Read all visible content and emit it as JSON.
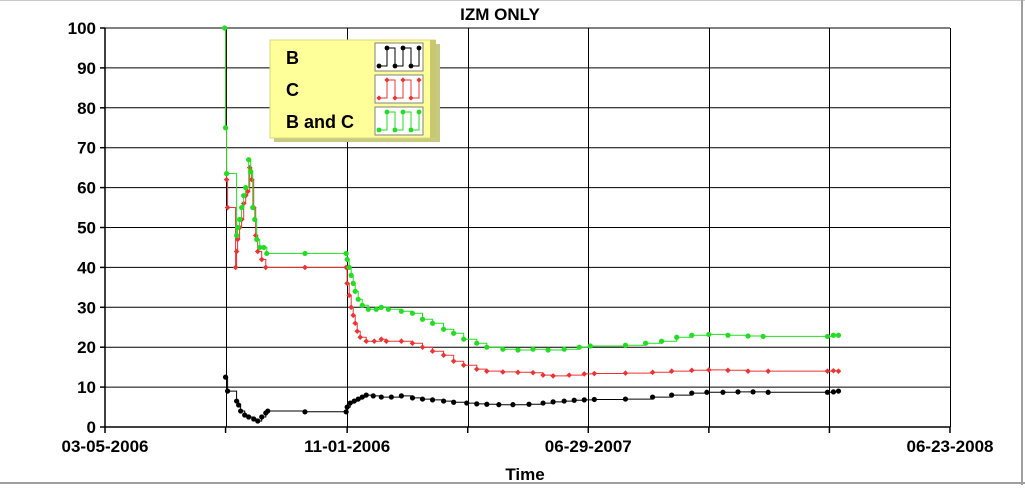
{
  "chart_data": {
    "type": "line",
    "title": "IZM ONLY",
    "xlabel": "Time",
    "ylabel": "",
    "ylim": [
      0,
      100
    ],
    "yticks": [
      0,
      10,
      20,
      30,
      40,
      50,
      60,
      70,
      80,
      90,
      100
    ],
    "xlim": [
      "2006-03-05",
      "2008-06-23"
    ],
    "xtick_dates": [
      "2006-03-05",
      "2006-07-03",
      "2006-11-01",
      "2007-03-01",
      "2007-06-29",
      "2007-10-27",
      "2008-02-24",
      "2008-06-23"
    ],
    "xtick_labels": [
      "03-05-2006",
      "",
      "11-01-2006",
      "",
      "06-29-2007",
      "",
      "",
      "06-23-2008"
    ],
    "grid": true,
    "legend_position": "top-left",
    "series": [
      {
        "name": "B",
        "color": "#000000",
        "points": [
          [
            "2006-07-03",
            12.5
          ],
          [
            "2006-07-05",
            9
          ],
          [
            "2006-07-14",
            6.5
          ],
          [
            "2006-07-16",
            5.5
          ],
          [
            "2006-07-18",
            4
          ],
          [
            "2006-07-22",
            3
          ],
          [
            "2006-07-26",
            2.5
          ],
          [
            "2006-07-31",
            2
          ],
          [
            "2006-08-04",
            1.5
          ],
          [
            "2006-08-08",
            2.5
          ],
          [
            "2006-08-12",
            3.5
          ],
          [
            "2006-08-14",
            4
          ],
          [
            "2006-09-20",
            3.8
          ],
          [
            "2006-10-31",
            3.8
          ],
          [
            "2006-11-01",
            5
          ],
          [
            "2006-11-04",
            6
          ],
          [
            "2006-11-08",
            6.5
          ],
          [
            "2006-11-12",
            7
          ],
          [
            "2006-11-16",
            7.5
          ],
          [
            "2006-11-20",
            8
          ],
          [
            "2006-11-27",
            7.8
          ],
          [
            "2006-12-05",
            7.5
          ],
          [
            "2006-12-15",
            7.5
          ],
          [
            "2006-12-25",
            7.8
          ],
          [
            "2007-01-05",
            7.3
          ],
          [
            "2007-01-15",
            7
          ],
          [
            "2007-01-25",
            6.8
          ],
          [
            "2007-02-05",
            6.5
          ],
          [
            "2007-02-15",
            6.2
          ],
          [
            "2007-02-28",
            6
          ],
          [
            "2007-03-10",
            5.8
          ],
          [
            "2007-03-20",
            5.7
          ],
          [
            "2007-04-01",
            5.6
          ],
          [
            "2007-04-15",
            5.6
          ],
          [
            "2007-05-01",
            5.7
          ],
          [
            "2007-05-15",
            6
          ],
          [
            "2007-05-25",
            6.3
          ],
          [
            "2007-06-05",
            6.5
          ],
          [
            "2007-06-15",
            6.7
          ],
          [
            "2007-06-25",
            6.8
          ],
          [
            "2007-07-05",
            6.9
          ],
          [
            "2007-08-05",
            7
          ],
          [
            "2007-09-01",
            7.5
          ],
          [
            "2007-09-20",
            8
          ],
          [
            "2007-10-10",
            8.5
          ],
          [
            "2007-10-25",
            8.7
          ],
          [
            "2007-11-10",
            8.7
          ],
          [
            "2007-11-25",
            8.8
          ],
          [
            "2007-12-10",
            8.8
          ],
          [
            "2007-12-25",
            8.7
          ],
          [
            "2008-02-22",
            8.7
          ],
          [
            "2008-02-28",
            8.8
          ],
          [
            "2008-03-04",
            9
          ]
        ]
      },
      {
        "name": "C",
        "color": "#ee3333",
        "points": [
          [
            "2006-07-02",
            100
          ],
          [
            "2006-07-03",
            75
          ],
          [
            "2006-07-04",
            62
          ],
          [
            "2006-07-05",
            55
          ],
          [
            "2006-07-13",
            40
          ],
          [
            "2006-07-14",
            44
          ],
          [
            "2006-07-15",
            47
          ],
          [
            "2006-07-17",
            50
          ],
          [
            "2006-07-19",
            52
          ],
          [
            "2006-07-21",
            56
          ],
          [
            "2006-07-23",
            58
          ],
          [
            "2006-07-25",
            59
          ],
          [
            "2006-07-27",
            65
          ],
          [
            "2006-07-29",
            62
          ],
          [
            "2006-07-31",
            55
          ],
          [
            "2006-08-02",
            48
          ],
          [
            "2006-08-04",
            44
          ],
          [
            "2006-08-08",
            42
          ],
          [
            "2006-08-12",
            40
          ],
          [
            "2006-09-20",
            40
          ],
          [
            "2006-10-31",
            40
          ],
          [
            "2006-11-01",
            36
          ],
          [
            "2006-11-03",
            33
          ],
          [
            "2006-11-05",
            30
          ],
          [
            "2006-11-07",
            28
          ],
          [
            "2006-11-09",
            26
          ],
          [
            "2006-11-11",
            24
          ],
          [
            "2006-11-14",
            22.5
          ],
          [
            "2006-11-20",
            21.5
          ],
          [
            "2006-11-28",
            21.5
          ],
          [
            "2006-12-05",
            22
          ],
          [
            "2006-12-10",
            21.5
          ],
          [
            "2006-12-25",
            21.5
          ],
          [
            "2007-01-05",
            21
          ],
          [
            "2007-01-15",
            20
          ],
          [
            "2007-01-25",
            19
          ],
          [
            "2007-02-05",
            18
          ],
          [
            "2007-02-15",
            16.5
          ],
          [
            "2007-02-25",
            15.5
          ],
          [
            "2007-03-10",
            14.5
          ],
          [
            "2007-03-20",
            14
          ],
          [
            "2007-04-05",
            13.8
          ],
          [
            "2007-04-20",
            13.7
          ],
          [
            "2007-05-05",
            13.6
          ],
          [
            "2007-05-15",
            13
          ],
          [
            "2007-05-25",
            12.8
          ],
          [
            "2007-06-10",
            13
          ],
          [
            "2007-06-25",
            13.3
          ],
          [
            "2007-07-05",
            13.4
          ],
          [
            "2007-08-05",
            13.5
          ],
          [
            "2007-09-01",
            13.7
          ],
          [
            "2007-09-20",
            14
          ],
          [
            "2007-10-10",
            14.2
          ],
          [
            "2007-10-27",
            14.3
          ],
          [
            "2007-11-15",
            14.2
          ],
          [
            "2007-12-05",
            14
          ],
          [
            "2007-12-25",
            14
          ],
          [
            "2008-02-22",
            14
          ],
          [
            "2008-02-28",
            14.1
          ],
          [
            "2008-03-04",
            14
          ]
        ]
      },
      {
        "name": "B and C",
        "color": "#22dd22",
        "points": [
          [
            "2006-07-02",
            100
          ],
          [
            "2006-07-03",
            75
          ],
          [
            "2006-07-04",
            63.5
          ],
          [
            "2006-07-14",
            48
          ],
          [
            "2006-07-15",
            50
          ],
          [
            "2006-07-17",
            52
          ],
          [
            "2006-07-19",
            55
          ],
          [
            "2006-07-21",
            58
          ],
          [
            "2006-07-23",
            60
          ],
          [
            "2006-07-26",
            67
          ],
          [
            "2006-07-28",
            64
          ],
          [
            "2006-07-30",
            55
          ],
          [
            "2006-08-01",
            52
          ],
          [
            "2006-08-03",
            47
          ],
          [
            "2006-08-06",
            45
          ],
          [
            "2006-08-10",
            45
          ],
          [
            "2006-08-13",
            43.5
          ],
          [
            "2006-09-20",
            43.5
          ],
          [
            "2006-10-31",
            43.5
          ],
          [
            "2006-11-01",
            42
          ],
          [
            "2006-11-03",
            40
          ],
          [
            "2006-11-05",
            38
          ],
          [
            "2006-11-07",
            36
          ],
          [
            "2006-11-09",
            34
          ],
          [
            "2006-11-12",
            32
          ],
          [
            "2006-11-16",
            30.5
          ],
          [
            "2006-11-22",
            29.5
          ],
          [
            "2006-11-30",
            29.5
          ],
          [
            "2006-12-05",
            30
          ],
          [
            "2006-12-12",
            29.5
          ],
          [
            "2006-12-25",
            29
          ],
          [
            "2007-01-05",
            28.5
          ],
          [
            "2007-01-15",
            27
          ],
          [
            "2007-01-25",
            26
          ],
          [
            "2007-02-05",
            24.5
          ],
          [
            "2007-02-15",
            23.5
          ],
          [
            "2007-02-25",
            22
          ],
          [
            "2007-03-10",
            21
          ],
          [
            "2007-03-20",
            20
          ],
          [
            "2007-04-05",
            19.5
          ],
          [
            "2007-04-20",
            19.3
          ],
          [
            "2007-05-05",
            19.5
          ],
          [
            "2007-05-20",
            19.3
          ],
          [
            "2007-06-05",
            19.5
          ],
          [
            "2007-06-20",
            20
          ],
          [
            "2007-07-01",
            20.3
          ],
          [
            "2007-08-05",
            20.5
          ],
          [
            "2007-08-25",
            21
          ],
          [
            "2007-09-10",
            21.5
          ],
          [
            "2007-09-25",
            22.5
          ],
          [
            "2007-10-10",
            23
          ],
          [
            "2007-10-27",
            23.2
          ],
          [
            "2007-11-15",
            23
          ],
          [
            "2007-12-05",
            22.8
          ],
          [
            "2007-12-20",
            22.7
          ],
          [
            "2008-02-22",
            22.7
          ],
          [
            "2008-02-28",
            23
          ],
          [
            "2008-03-04",
            23
          ]
        ]
      }
    ]
  }
}
